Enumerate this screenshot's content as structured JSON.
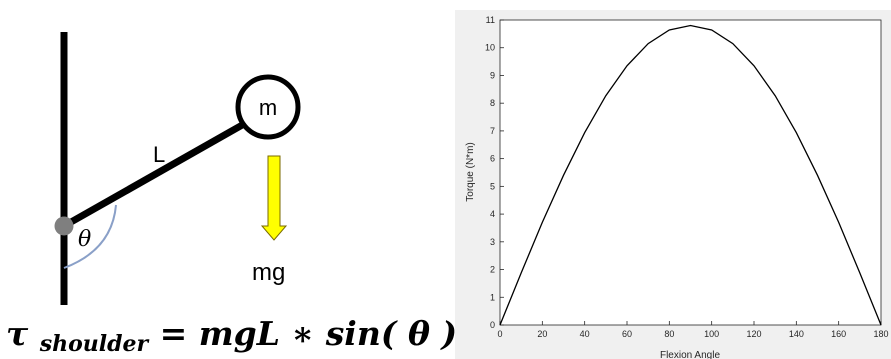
{
  "diagram": {
    "mass_label": "m",
    "length_label": "L",
    "angle_label": "θ",
    "force_label": "mg",
    "arrow_color": "#ffff00",
    "pivot_color": "#7f7f7f",
    "arc_color": "#8aa0c8",
    "equation": {
      "tau": "τ",
      "subscript": "shoulder",
      "rhs_prefix": " = mgL ∗ sin(",
      "theta": "θ",
      "rhs_suffix": ")"
    }
  },
  "chart_data": {
    "type": "line",
    "title": "",
    "xlabel": "Flexion Angle",
    "ylabel": "Torque (N*m)",
    "xlim": [
      0,
      180
    ],
    "ylim": [
      0,
      11
    ],
    "xticks": [
      0,
      20,
      40,
      60,
      80,
      100,
      120,
      140,
      160,
      180
    ],
    "yticks": [
      0,
      1,
      2,
      3,
      4,
      5,
      6,
      7,
      8,
      9,
      10,
      11
    ],
    "grid": false,
    "series": [
      {
        "x": [
          0,
          10,
          20,
          30,
          40,
          50,
          60,
          70,
          80,
          90,
          100,
          110,
          120,
          130,
          140,
          150,
          160,
          170,
          180
        ],
        "y": [
          0,
          1.88,
          3.7,
          5.4,
          6.94,
          8.27,
          9.35,
          10.15,
          10.64,
          10.8,
          10.64,
          10.15,
          9.35,
          8.27,
          6.94,
          5.4,
          3.7,
          1.88,
          0
        ]
      }
    ]
  }
}
